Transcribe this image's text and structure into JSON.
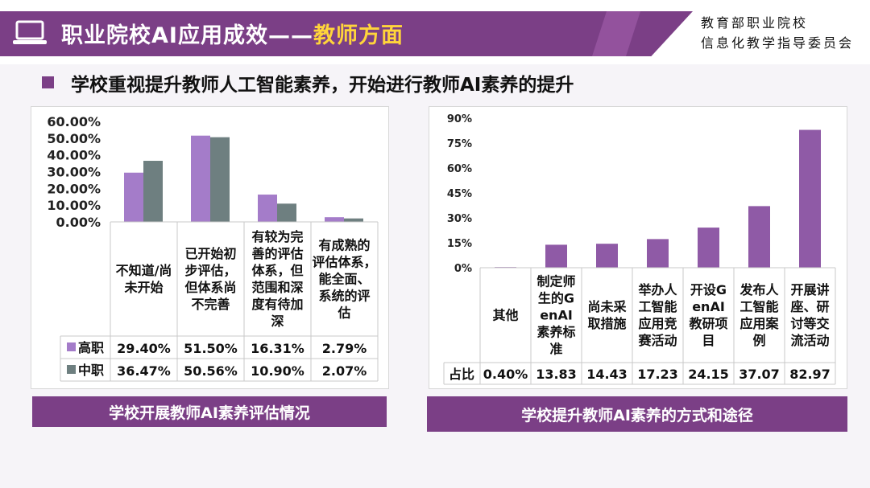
{
  "header": {
    "title_main": "职业院校AI应用成效——",
    "title_highlight": "教师方面",
    "org_line1": "教育部职业院校",
    "org_line2": "信息化教学指导委员会"
  },
  "subtitle": "学校重视提升教师人工智能素养，开始进行教师AI素养的提升",
  "chart_data": [
    {
      "type": "bar",
      "title": "学校开展教师AI素养评估情况",
      "categories": [
        [
          "不知道/尚",
          "未开始"
        ],
        [
          "已开始初",
          "步评估，",
          "但体系尚",
          "不完善"
        ],
        [
          "有较为完",
          "善的评估",
          "体系，但",
          "范围和深",
          "度有待加",
          "深"
        ],
        [
          "有成熟的",
          "评估体系，",
          "能全面、",
          "系统的评",
          "估"
        ]
      ],
      "series": [
        {
          "name": "高职",
          "values": [
            29.4,
            51.5,
            16.31,
            2.79
          ],
          "labels": [
            "29.40%",
            "51.50%",
            "16.31%",
            "2.79%"
          ],
          "color": "#a47cc9"
        },
        {
          "name": "中职",
          "values": [
            36.47,
            50.56,
            10.9,
            2.07
          ],
          "labels": [
            "36.47%",
            "50.56%",
            "10.90%",
            "2.07%"
          ],
          "color": "#6e7f80"
        }
      ],
      "ylim": [
        0,
        60
      ],
      "yticks": [
        "0.00%",
        "10.00%",
        "20.00%",
        "30.00%",
        "40.00%",
        "50.00%",
        "60.00%"
      ],
      "legend": "data-table"
    },
    {
      "type": "bar",
      "title": "学校提升教师AI素养的方式和途径",
      "categories": [
        [
          "其他"
        ],
        [
          "制定师",
          "生的G",
          "enAI",
          "素养标",
          "准"
        ],
        [
          "尚未采",
          "取措施"
        ],
        [
          "举办人",
          "工智能",
          "应用竞",
          "赛活动"
        ],
        [
          "开设G",
          "enAI",
          "教研项",
          "目"
        ],
        [
          "发布人",
          "工智能",
          "应用案",
          "例"
        ],
        [
          "开展讲",
          "座、研",
          "讨等交",
          "流活动"
        ]
      ],
      "series": [
        {
          "name": "占比",
          "values": [
            0.4,
            13.83,
            14.43,
            17.23,
            24.15,
            37.07,
            82.97
          ],
          "labels": [
            "0.40%",
            "13.83",
            "14.43",
            "17.23",
            "24.15",
            "37.07",
            "82.97"
          ],
          "color": "#8f5aa6"
        }
      ],
      "ylim": [
        0,
        90
      ],
      "yticks": [
        "0%",
        "15%",
        "30%",
        "45%",
        "60%",
        "75%",
        "90%"
      ],
      "legend": "data-table"
    }
  ]
}
